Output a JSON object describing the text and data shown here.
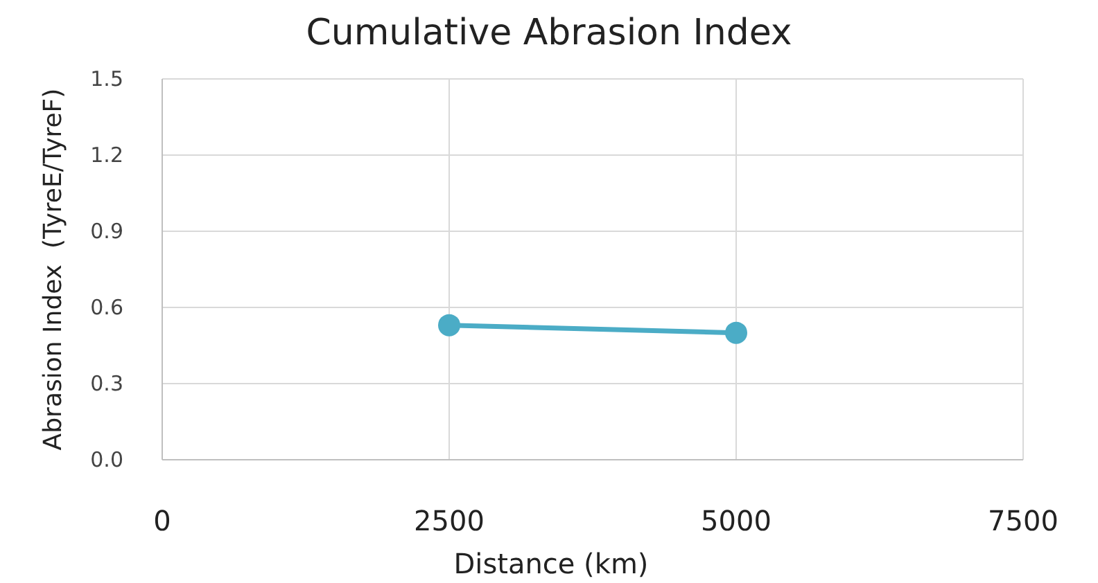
{
  "chart_data": {
    "type": "line",
    "title": "Cumulative Abrasion Index",
    "xlabel": "Distance (km)",
    "ylabel": "Abrasion Index  (TyreE/TyreF)",
    "x": [
      2500,
      5000
    ],
    "series": [
      {
        "color": "#4bacc6",
        "values": [
          0.53,
          0.5
        ]
      }
    ],
    "xlim": [
      0,
      7500
    ],
    "xticks": [
      0,
      2500,
      5000,
      7500
    ],
    "ylim": [
      0,
      1.5
    ],
    "yticks": [
      {
        "value": 0,
        "label": "0.0"
      },
      {
        "value": 0.3,
        "label": "0.3"
      },
      {
        "value": 0.6,
        "label": "0.6"
      },
      {
        "value": 0.9,
        "label": "0.9"
      },
      {
        "value": 1.2,
        "label": "1.2"
      },
      {
        "value": 1.5,
        "label": "1.5"
      }
    ],
    "grid": true,
    "marker": "circle",
    "line_style": "solid"
  }
}
